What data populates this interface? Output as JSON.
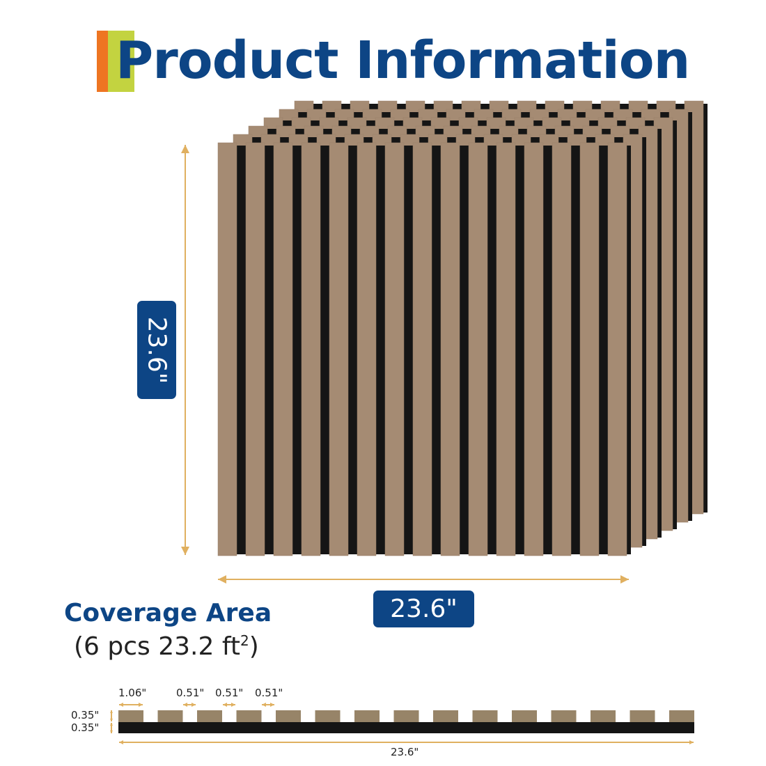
{
  "header": {
    "title": "Product Information"
  },
  "dimensions": {
    "height_label": "23.6\"",
    "width_label": "23.6\""
  },
  "coverage": {
    "title": "Coverage Area",
    "subtitle_prefix": "(6 pcs 23.2 ft",
    "subtitle_sup": "2",
    "subtitle_suffix": ")"
  },
  "profile": {
    "slat_width": "1.06\"",
    "gaps": [
      "0.51\"",
      "0.51\"",
      "0.51\""
    ],
    "slat_depth": "0.35\"",
    "base_depth": "0.35\"",
    "total_width": "23.6\""
  },
  "colors": {
    "brand_blue": "#0d4585",
    "orange": "#ee7522",
    "lime": "#c3d340",
    "wood": "#a58b73",
    "felt": "#151515",
    "arrow": "#e0b060"
  },
  "panel_count": 6,
  "slats_per_panel": 15
}
